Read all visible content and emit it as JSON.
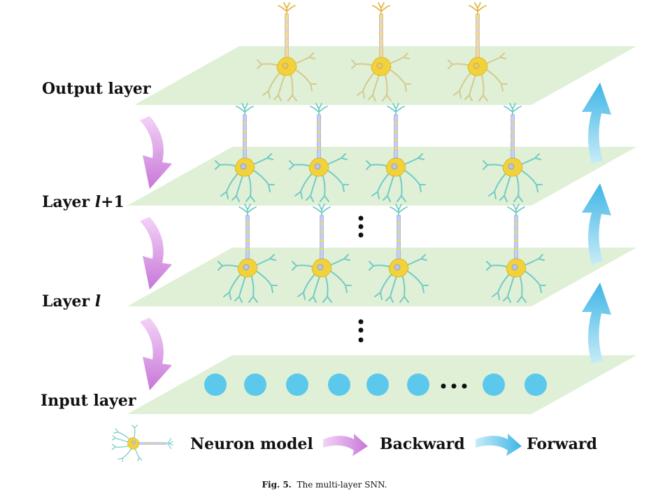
{
  "layers": {
    "output": "Output layer",
    "l_plus_1_prefix": "Layer ",
    "l_plus_1_var": "l",
    "l_plus_1_suffix": "+1",
    "l_prefix": "Layer ",
    "l_var": "l",
    "input": "Input layer"
  },
  "legend": {
    "neuron": "Neuron model",
    "backward": "Backward",
    "forward": "Forward"
  },
  "caption": {
    "label": "Fig. 5.",
    "text": "The multi-layer SNN."
  },
  "colors": {
    "plane": "#dff0d6",
    "backward_arrow": "#d48be0",
    "forward_arrow": "#55c2ec",
    "input_node": "#5cc9ec",
    "soma": "#f2d23a",
    "output_dendrite": "#d9c98a",
    "hidden_dendrite": "#6fc9c6",
    "axon": "#b9c4e6"
  },
  "icons": {
    "neuron": "neuron-icon",
    "backward": "backward-arrow-icon",
    "forward": "forward-arrow-icon"
  }
}
